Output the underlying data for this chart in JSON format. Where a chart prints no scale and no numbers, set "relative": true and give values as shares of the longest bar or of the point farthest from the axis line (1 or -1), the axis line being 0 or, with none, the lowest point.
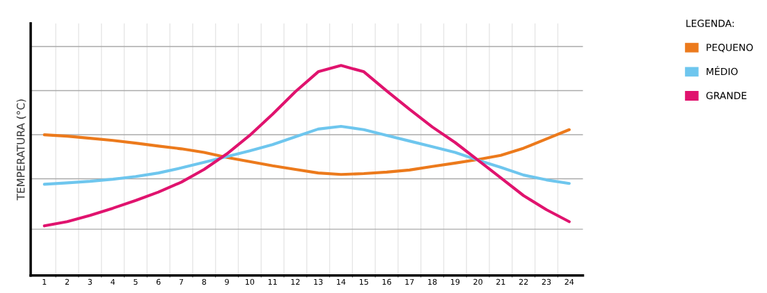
{
  "chart_data": {
    "type": "line",
    "relative": true,
    "ylabel": "TEMPERATURA (°C)",
    "legend_title": "LEGENDA:",
    "categories": [
      "1",
      "2",
      "3",
      "4",
      "5",
      "6",
      "7",
      "8",
      "9",
      "10",
      "11",
      "12",
      "13",
      "14",
      "15",
      "16",
      "17",
      "18",
      "19",
      "20",
      "21",
      "22",
      "23",
      "24"
    ],
    "series": [
      {
        "name": "PEQUENO",
        "color": "#ec7a1c",
        "values": [
          0.67,
          0.663,
          0.653,
          0.643,
          0.63,
          0.616,
          0.603,
          0.586,
          0.562,
          0.542,
          0.522,
          0.505,
          0.488,
          0.481,
          0.485,
          0.492,
          0.502,
          0.519,
          0.535,
          0.552,
          0.572,
          0.606,
          0.65,
          0.694
        ]
      },
      {
        "name": "MÉDIO",
        "color": "#6ec6ee",
        "values": [
          0.434,
          0.441,
          0.448,
          0.458,
          0.471,
          0.488,
          0.512,
          0.539,
          0.566,
          0.593,
          0.623,
          0.66,
          0.697,
          0.71,
          0.694,
          0.667,
          0.64,
          0.613,
          0.586,
          0.549,
          0.515,
          0.478,
          0.455,
          0.438
        ]
      },
      {
        "name": "GRANDE",
        "color": "#e0136e",
        "values": [
          0.236,
          0.256,
          0.286,
          0.32,
          0.357,
          0.397,
          0.444,
          0.505,
          0.579,
          0.667,
          0.768,
          0.875,
          0.97,
          1,
          0.97,
          0.879,
          0.791,
          0.707,
          0.633,
          0.549,
          0.465,
          0.38,
          0.313,
          0.256
        ]
      }
    ],
    "grid": true,
    "legend": "top right",
    "marker": "none",
    "line_style": "solid"
  }
}
